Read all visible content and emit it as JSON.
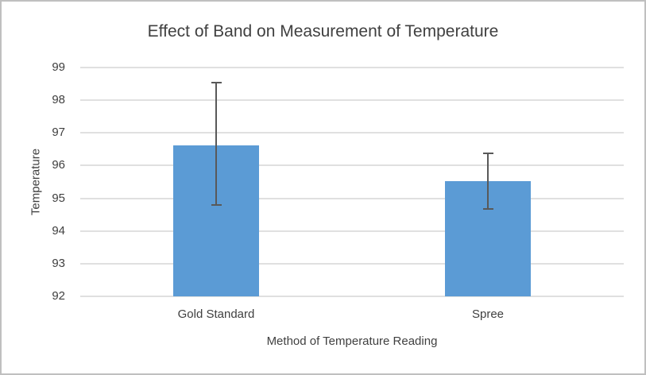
{
  "chart_data": {
    "type": "bar",
    "title": "Effect of Band on Measurement of Temperature",
    "xlabel": "Method of Temperature Reading",
    "ylabel": "Temperature",
    "categories": [
      "Gold Standard",
      "Spree"
    ],
    "values": [
      96.63,
      95.53
    ],
    "error_upper": [
      98.57,
      96.4
    ],
    "error_lower": [
      94.76,
      94.66
    ],
    "ylim": [
      92,
      99
    ],
    "yticks": [
      92,
      93,
      94,
      95,
      96,
      97,
      98,
      99
    ],
    "grid": true,
    "legend": "none",
    "colors": {
      "bar": "#5B9BD5",
      "error_bar": "#595959",
      "gridline": "#E0E0E0",
      "text": "#404040",
      "chart_border": "#BFBFBF",
      "background": "#FFFFFF"
    }
  }
}
